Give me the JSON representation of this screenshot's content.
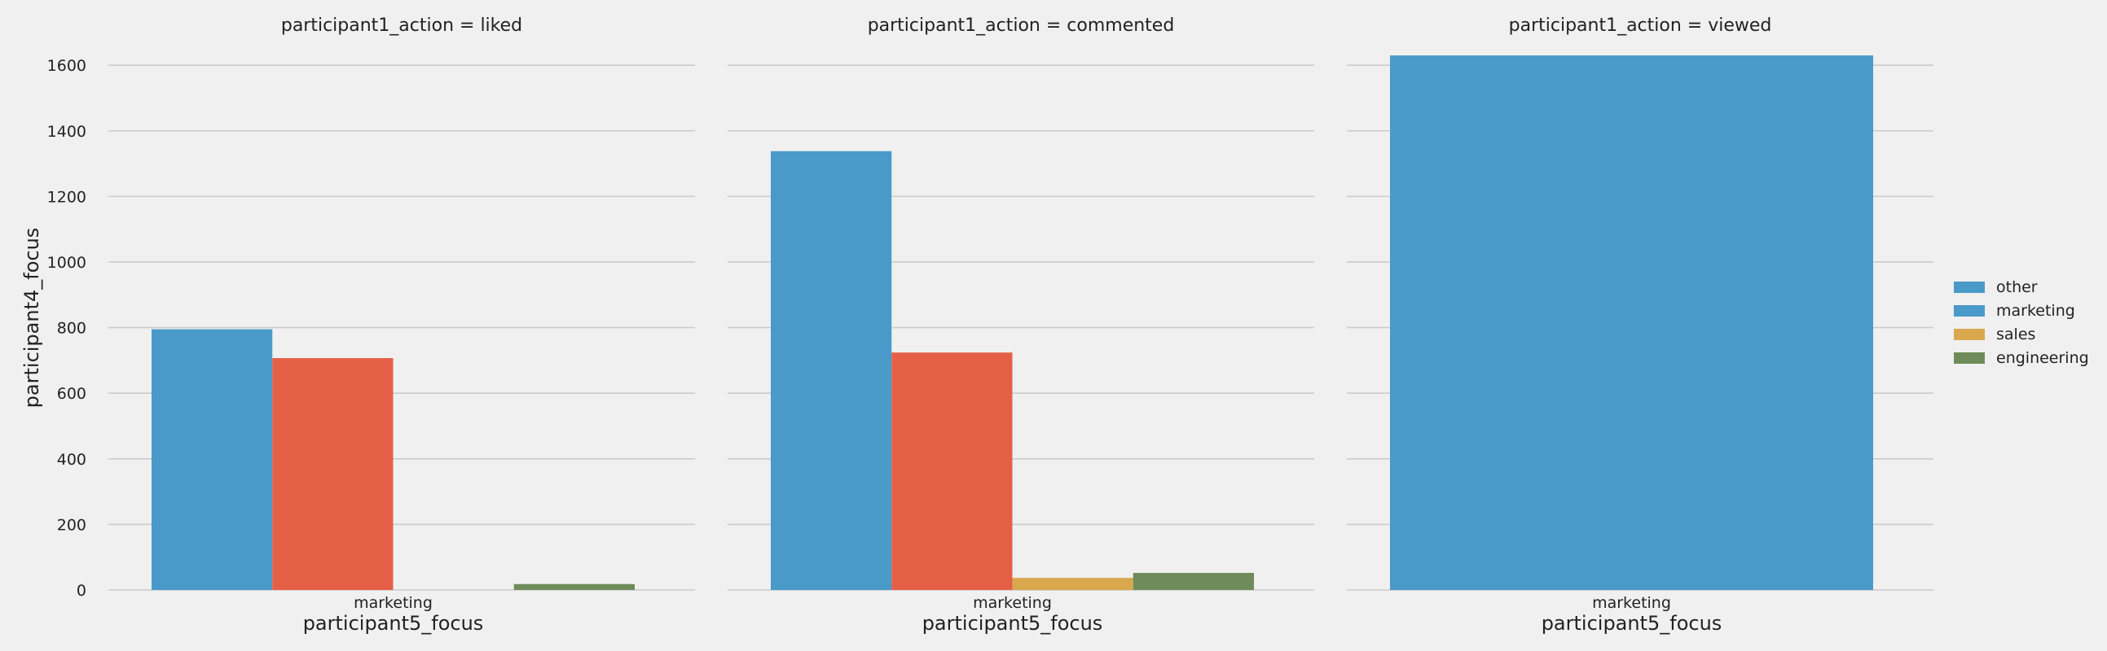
{
  "chart_data": [
    {
      "type": "bar",
      "title": "participant1_action = liked",
      "xlabel": "participant5_focus",
      "ylabel": "participant4_focus",
      "categories": [
        "marketing"
      ],
      "series": [
        {
          "name": "other",
          "values": [
            795
          ]
        },
        {
          "name": "marketing",
          "values": [
            707
          ]
        },
        {
          "name": "sales",
          "values": [
            0
          ]
        },
        {
          "name": "engineering",
          "values": [
            18
          ]
        }
      ]
    },
    {
      "type": "bar",
      "title": "participant1_action = commented",
      "xlabel": "participant5_focus",
      "ylabel": "",
      "categories": [
        "marketing"
      ],
      "series": [
        {
          "name": "other",
          "values": [
            1338
          ]
        },
        {
          "name": "marketing",
          "values": [
            724
          ]
        },
        {
          "name": "sales",
          "values": [
            37
          ]
        },
        {
          "name": "engineering",
          "values": [
            52
          ]
        }
      ]
    },
    {
      "type": "bar",
      "title": "participant1_action = viewed",
      "xlabel": "participant5_focus",
      "ylabel": "",
      "categories": [
        "marketing"
      ],
      "series": [
        {
          "name": "other",
          "values": [
            1630
          ]
        }
      ]
    }
  ],
  "shared": {
    "ylim": [
      0,
      1650
    ],
    "yticks": [
      0,
      200,
      400,
      600,
      800,
      1000,
      1200,
      1400,
      1600
    ],
    "grid": true,
    "legend_position": "right",
    "legend": [
      {
        "name": "other",
        "color": "#4a9ac9"
      },
      {
        "name": "marketing",
        "color": "#4a9ac9"
      },
      {
        "name": "sales",
        "color": "#d9a84e"
      },
      {
        "name": "engineering",
        "color": "#6f8b5a"
      }
    ],
    "bar_colors": [
      "#4a9ac9",
      "#e55f47",
      "#d9a84e",
      "#6f8b5a"
    ]
  }
}
